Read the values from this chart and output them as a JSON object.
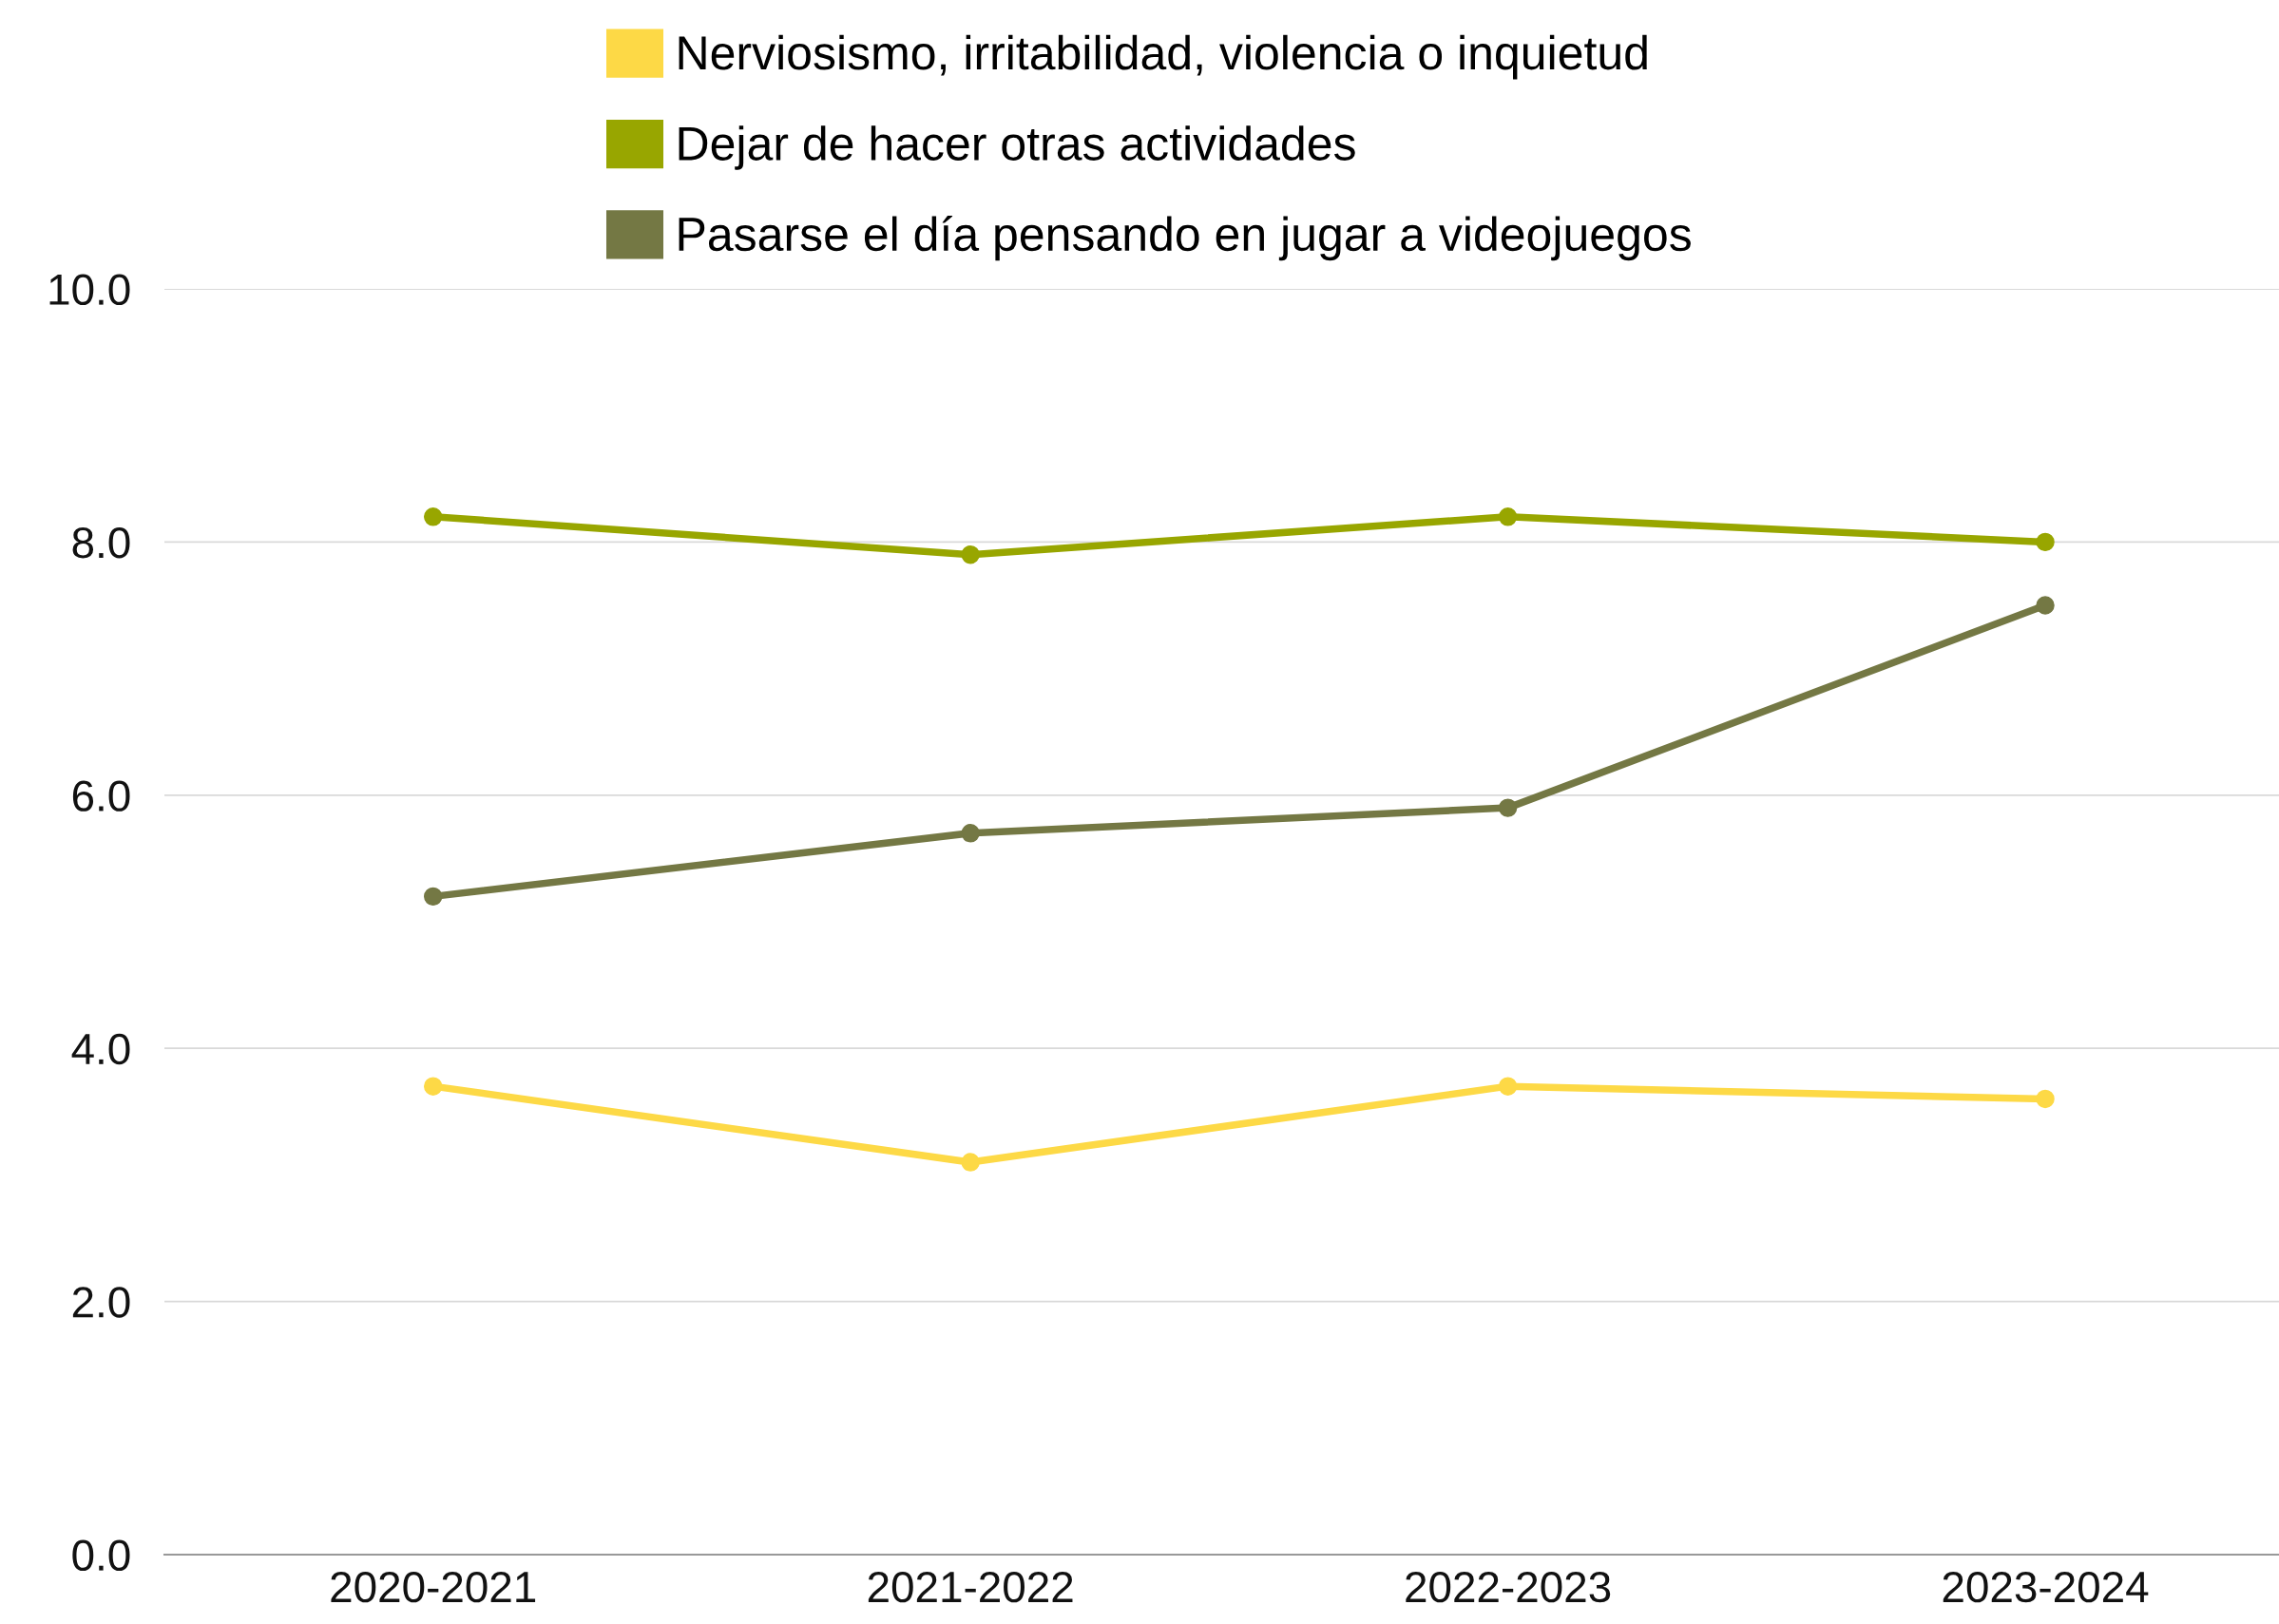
{
  "chart_data": {
    "type": "line",
    "categories": [
      "2020-2021",
      "2021-2022",
      "2022-2023",
      "2023-2024"
    ],
    "series": [
      {
        "name": "Nerviosismo, irritabilidad, violencia o inquietud",
        "color": "#fdd946",
        "values": [
          3.7,
          3.1,
          3.7,
          3.6
        ]
      },
      {
        "name": "Dejar de hacer otras actividades",
        "color": "#98a600",
        "values": [
          8.2,
          7.9,
          8.2,
          8.0
        ]
      },
      {
        "name": "Pasarse el día pensando en jugar a videojuegos",
        "color": "#747844",
        "values": [
          5.2,
          5.7,
          5.9,
          7.5
        ]
      }
    ],
    "ylim": [
      0,
      10
    ],
    "yticks": [
      {
        "value": 0,
        "label": "0.0"
      },
      {
        "value": 2,
        "label": "2.0"
      },
      {
        "value": 4,
        "label": "4.0"
      },
      {
        "value": 6,
        "label": "6.0"
      },
      {
        "value": 8,
        "label": "8.0"
      },
      {
        "value": 10,
        "label": "10.0"
      }
    ],
    "grid": "y",
    "legend": "top",
    "marker": "circle",
    "line_style": "solid"
  }
}
